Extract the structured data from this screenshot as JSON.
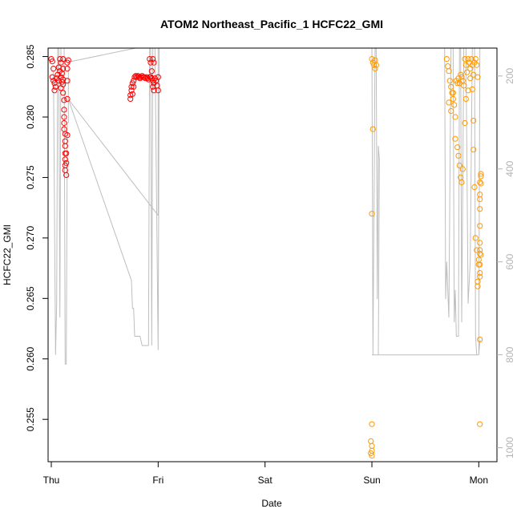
{
  "chart_data": {
    "type": "scatter",
    "title": "ATOM2 Northeast_Pacific_1 HCFC22_GMI",
    "xlabel": "Date",
    "ylabel": "HCFC22_GMI",
    "ylim": [
      0.2515,
      0.2857
    ],
    "xlim": [
      -0.03,
      4.17
    ],
    "x_ticks": [
      {
        "value": 0,
        "label": "Thu"
      },
      {
        "value": 1,
        "label": "Fri"
      },
      {
        "value": 2,
        "label": "Sat"
      },
      {
        "value": 3,
        "label": "Sun"
      },
      {
        "value": 4,
        "label": "Mon"
      }
    ],
    "y_ticks": [
      0.255,
      0.26,
      0.265,
      0.27,
      0.275,
      0.28,
      0.285
    ],
    "y2_label": "",
    "y2_ticks": [
      200,
      400,
      600,
      800,
      1000
    ],
    "y2lim": [
      1030,
      140
    ],
    "grid": false,
    "colors": {
      "series_early": "#ff0000",
      "series_late": "#ff9900",
      "altitude_line": "#bebebe",
      "right_axis": "#b3b3b3"
    },
    "series": [
      {
        "color": "#ff0000",
        "points": [
          [
            0.0,
            0.2848
          ],
          [
            0.01,
            0.2846
          ],
          [
            0.02,
            0.284
          ],
          [
            0.01,
            0.2833
          ],
          [
            0.02,
            0.283
          ],
          [
            0.03,
            0.2828
          ],
          [
            0.04,
            0.2825
          ],
          [
            0.03,
            0.2822
          ],
          [
            0.05,
            0.2832
          ],
          [
            0.06,
            0.2835
          ],
          [
            0.07,
            0.283
          ],
          [
            0.08,
            0.2848
          ],
          [
            0.09,
            0.2845
          ],
          [
            0.07,
            0.2841
          ],
          [
            0.08,
            0.2838
          ],
          [
            0.09,
            0.2833
          ],
          [
            0.1,
            0.2829
          ],
          [
            0.09,
            0.2824
          ],
          [
            0.11,
            0.2848
          ],
          [
            0.11,
            0.284
          ],
          [
            0.1,
            0.2836
          ],
          [
            0.11,
            0.2831
          ],
          [
            0.11,
            0.2827
          ],
          [
            0.11,
            0.282
          ],
          [
            0.12,
            0.2814
          ],
          [
            0.12,
            0.2806
          ],
          [
            0.12,
            0.28
          ],
          [
            0.12,
            0.2795
          ],
          [
            0.12,
            0.279
          ],
          [
            0.13,
            0.2786
          ],
          [
            0.13,
            0.278
          ],
          [
            0.13,
            0.2776
          ],
          [
            0.13,
            0.277
          ],
          [
            0.13,
            0.2765
          ],
          [
            0.13,
            0.276
          ],
          [
            0.13,
            0.2756
          ],
          [
            0.14,
            0.2752
          ],
          [
            0.14,
            0.2762
          ],
          [
            0.14,
            0.277
          ],
          [
            0.15,
            0.2785
          ],
          [
            0.15,
            0.2815
          ],
          [
            0.15,
            0.283
          ],
          [
            0.15,
            0.284
          ],
          [
            0.15,
            0.2845
          ],
          [
            0.16,
            0.2847
          ],
          [
            0.74,
            0.2815
          ],
          [
            0.74,
            0.2818
          ],
          [
            0.75,
            0.2822
          ],
          [
            0.75,
            0.2825
          ],
          [
            0.76,
            0.2828
          ],
          [
            0.77,
            0.283
          ],
          [
            0.78,
            0.2833
          ],
          [
            0.79,
            0.2834
          ],
          [
            0.8,
            0.2833
          ],
          [
            0.81,
            0.2834
          ],
          [
            0.82,
            0.2833
          ],
          [
            0.83,
            0.2832
          ],
          [
            0.84,
            0.2833
          ],
          [
            0.85,
            0.2834
          ],
          [
            0.86,
            0.2833
          ],
          [
            0.87,
            0.2833
          ],
          [
            0.88,
            0.2832
          ],
          [
            0.89,
            0.2833
          ],
          [
            0.9,
            0.2832
          ],
          [
            0.91,
            0.2831
          ],
          [
            0.92,
            0.2833
          ],
          [
            0.93,
            0.2833
          ],
          [
            0.94,
            0.2832
          ],
          [
            0.76,
            0.2819
          ],
          [
            0.77,
            0.2825
          ],
          [
            0.92,
            0.2848
          ],
          [
            0.93,
            0.2845
          ],
          [
            0.95,
            0.2848
          ],
          [
            0.96,
            0.2845
          ],
          [
            0.94,
            0.2838
          ],
          [
            0.95,
            0.283
          ],
          [
            0.95,
            0.2825
          ],
          [
            0.96,
            0.2828
          ],
          [
            0.97,
            0.2832
          ],
          [
            0.98,
            0.283
          ],
          [
            0.99,
            0.2826
          ],
          [
            1.0,
            0.2822
          ],
          [
            1.0,
            0.2833
          ],
          [
            0.96,
            0.2822
          ]
        ]
      },
      {
        "color": "#ff9900",
        "points": [
          [
            3.0,
            0.2848
          ],
          [
            3.01,
            0.2845
          ],
          [
            3.02,
            0.2843
          ],
          [
            3.03,
            0.2847
          ],
          [
            3.04,
            0.2843
          ],
          [
            3.03,
            0.284
          ],
          [
            3.01,
            0.279
          ],
          [
            3.0,
            0.272
          ],
          [
            3.0,
            0.2546
          ],
          [
            2.99,
            0.2532
          ],
          [
            3.0,
            0.2528
          ],
          [
            3.0,
            0.2524
          ],
          [
            2.99,
            0.2522
          ],
          [
            3.0,
            0.252
          ],
          [
            3.7,
            0.2848
          ],
          [
            3.71,
            0.2842
          ],
          [
            3.72,
            0.2838
          ],
          [
            3.73,
            0.283
          ],
          [
            3.74,
            0.2825
          ],
          [
            3.75,
            0.282
          ],
          [
            3.76,
            0.2815
          ],
          [
            3.77,
            0.281
          ],
          [
            3.78,
            0.28
          ],
          [
            3.79,
            0.283
          ],
          [
            3.8,
            0.2828
          ],
          [
            3.81,
            0.2832
          ],
          [
            3.82,
            0.2828
          ],
          [
            3.83,
            0.2835
          ],
          [
            3.84,
            0.2833
          ],
          [
            3.85,
            0.283
          ],
          [
            3.86,
            0.2826
          ],
          [
            3.87,
            0.2848
          ],
          [
            3.88,
            0.2843
          ],
          [
            3.89,
            0.2837
          ],
          [
            3.9,
            0.2848
          ],
          [
            3.91,
            0.2845
          ],
          [
            3.92,
            0.284
          ],
          [
            3.93,
            0.2848
          ],
          [
            3.94,
            0.2843
          ],
          [
            3.95,
            0.2835
          ],
          [
            3.96,
            0.2845
          ],
          [
            3.97,
            0.2848
          ],
          [
            3.98,
            0.2843
          ],
          [
            3.99,
            0.2833
          ],
          [
            3.72,
            0.2812
          ],
          [
            3.74,
            0.2805
          ],
          [
            3.76,
            0.282
          ],
          [
            3.78,
            0.2782
          ],
          [
            3.8,
            0.2775
          ],
          [
            3.81,
            0.2768
          ],
          [
            3.82,
            0.276
          ],
          [
            3.83,
            0.275
          ],
          [
            3.84,
            0.2746
          ],
          [
            3.85,
            0.2757
          ],
          [
            3.87,
            0.2795
          ],
          [
            3.88,
            0.2815
          ],
          [
            3.9,
            0.2822
          ],
          [
            3.92,
            0.2832
          ],
          [
            3.94,
            0.2823
          ],
          [
            3.95,
            0.2797
          ],
          [
            3.95,
            0.2773
          ],
          [
            3.96,
            0.2742
          ],
          [
            3.97,
            0.27
          ],
          [
            3.98,
            0.269
          ],
          [
            3.99,
            0.266
          ],
          [
            3.99,
            0.2664
          ],
          [
            4.0,
            0.2678
          ],
          [
            4.0,
            0.2682
          ],
          [
            4.01,
            0.269
          ],
          [
            4.01,
            0.2687
          ],
          [
            4.01,
            0.2671
          ],
          [
            4.01,
            0.2668
          ],
          [
            4.01,
            0.2678
          ],
          [
            4.02,
            0.2686
          ],
          [
            4.01,
            0.2696
          ],
          [
            4.01,
            0.271
          ],
          [
            4.01,
            0.2724
          ],
          [
            4.01,
            0.2732
          ],
          [
            4.02,
            0.2751
          ],
          [
            4.02,
            0.2753
          ],
          [
            4.01,
            0.2746
          ],
          [
            4.02,
            0.2745
          ],
          [
            4.01,
            0.2736
          ],
          [
            4.01,
            0.2616
          ],
          [
            4.01,
            0.2546
          ]
        ]
      }
    ],
    "altitude_line": {
      "color": "#bebebe",
      "axis": "right",
      "points": [
        [
          0.0,
          190
        ],
        [
          0.02,
          190
        ],
        [
          0.04,
          800
        ],
        [
          0.05,
          690
        ],
        [
          0.06,
          130
        ],
        [
          0.07,
          130
        ],
        [
          0.08,
          720
        ],
        [
          0.09,
          130
        ],
        [
          0.12,
          130
        ],
        [
          0.13,
          820
        ],
        [
          0.14,
          820
        ],
        [
          0.15,
          300
        ],
        [
          0.16,
          300
        ],
        [
          0.16,
          170
        ],
        [
          1.0,
          130
        ],
        [
          1.0,
          500
        ],
        [
          0.16,
          250
        ],
        [
          0.75,
          640
        ],
        [
          0.76,
          700
        ],
        [
          0.77,
          700
        ],
        [
          0.78,
          760
        ],
        [
          0.8,
          760
        ],
        [
          0.83,
          760
        ],
        [
          0.85,
          780
        ],
        [
          0.87,
          780
        ],
        [
          0.91,
          780
        ],
        [
          0.92,
          130
        ],
        [
          0.93,
          130
        ],
        [
          0.94,
          780
        ],
        [
          0.95,
          130
        ],
        [
          0.97,
          130
        ],
        [
          1.0,
          790
        ],
        [
          1.01,
          130
        ],
        [
          2.99,
          130
        ],
        [
          3.0,
          130
        ],
        [
          3.01,
          800
        ],
        [
          3.03,
          130
        ],
        [
          3.04,
          130
        ],
        [
          3.05,
          680
        ],
        [
          3.06,
          350
        ],
        [
          3.07,
          380
        ],
        [
          3.06,
          800
        ],
        [
          3.0,
          800
        ],
        [
          4.0,
          800
        ],
        [
          4.01,
          130
        ],
        [
          3.68,
          130
        ],
        [
          3.69,
          680
        ],
        [
          3.7,
          600
        ],
        [
          3.72,
          720
        ],
        [
          3.74,
          130
        ],
        [
          3.76,
          130
        ],
        [
          3.77,
          730
        ],
        [
          3.78,
          660
        ],
        [
          3.79,
          760
        ],
        [
          3.81,
          760
        ],
        [
          3.82,
          130
        ],
        [
          3.83,
          130
        ],
        [
          3.84,
          730
        ],
        [
          3.86,
          130
        ],
        [
          3.88,
          130
        ],
        [
          3.9,
          690
        ],
        [
          3.92,
          600
        ],
        [
          3.94,
          130
        ],
        [
          3.96,
          130
        ],
        [
          3.97,
          760
        ],
        [
          3.98,
          800
        ],
        [
          4.0,
          800
        ],
        [
          4.01,
          770
        ],
        [
          4.02,
          770
        ]
      ]
    }
  }
}
